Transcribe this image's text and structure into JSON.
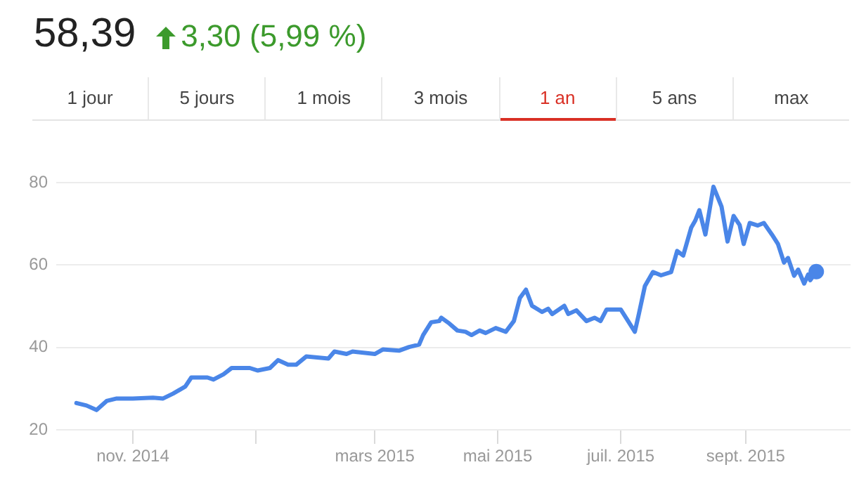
{
  "chart_data": {
    "type": "line",
    "title": "58,39",
    "subtitle": "3,30 (5,99 %)",
    "annotations": [
      "1 jour",
      "5 jours",
      "1 mois",
      "3 mois",
      "1 an",
      "5 ans",
      "max"
    ],
    "x": [
      "2014-10-04",
      "2014-10-09",
      "2014-10-14",
      "2014-10-19",
      "2014-10-24",
      "2014-11-01",
      "2014-11-11",
      "2014-11-16",
      "2014-11-21",
      "2014-11-27",
      "2014-11-30",
      "2014-12-08",
      "2014-12-11",
      "2014-12-16",
      "2014-12-20",
      "2014-12-29",
      "2015-01-02",
      "2015-01-08",
      "2015-01-12",
      "2015-01-17",
      "2015-01-21",
      "2015-01-26",
      "2015-02-06",
      "2015-02-09",
      "2015-02-15",
      "2015-02-18",
      "2015-03-01",
      "2015-03-05",
      "2015-03-13",
      "2015-03-18",
      "2015-03-23",
      "2015-03-25",
      "2015-03-29",
      "2015-04-02",
      "2015-04-03",
      "2015-04-07",
      "2015-04-11",
      "2015-04-15",
      "2015-04-18",
      "2015-04-22",
      "2015-04-25",
      "2015-04-30",
      "2015-05-05",
      "2015-05-09",
      "2015-05-12",
      "2015-05-15",
      "2015-05-18",
      "2015-05-23",
      "2015-05-26",
      "2015-05-28",
      "2015-06-03",
      "2015-06-05",
      "2015-06-09",
      "2015-06-14",
      "2015-06-18",
      "2015-06-21",
      "2015-06-24",
      "2015-07-01",
      "2015-07-04",
      "2015-07-08",
      "2015-07-10",
      "2015-07-13",
      "2015-07-17",
      "2015-07-21",
      "2015-07-26",
      "2015-07-29",
      "2015-08-01",
      "2015-08-05",
      "2015-08-07",
      "2015-08-09",
      "2015-08-12",
      "2015-08-16",
      "2015-08-20",
      "2015-08-23",
      "2015-08-26",
      "2015-08-29",
      "2015-08-31",
      "2015-09-03",
      "2015-09-07",
      "2015-09-10",
      "2015-09-14",
      "2015-09-17",
      "2015-09-20",
      "2015-09-22",
      "2015-09-25",
      "2015-09-27",
      "2015-09-30",
      "2015-10-02",
      "2015-10-03",
      "2015-10-06"
    ],
    "series": [
      {
        "color": "#4a86e8",
        "values": [
          26.5,
          25.9,
          24.8,
          27,
          27.6,
          27.6,
          27.8,
          27.6,
          28.8,
          30.5,
          32.7,
          32.7,
          32.2,
          33.5,
          35,
          35,
          34.4,
          35,
          36.9,
          35.8,
          35.8,
          37.8,
          37.3,
          39,
          38.4,
          39,
          38.4,
          39.5,
          39.2,
          40.1,
          40.7,
          43,
          46.1,
          46.4,
          47.2,
          45.8,
          44.1,
          43.8,
          43,
          44.1,
          43.5,
          44.7,
          43.8,
          46.4,
          52,
          54,
          50.1,
          48.6,
          49.4,
          48.1,
          50.1,
          48.1,
          49,
          46.4,
          47.2,
          46.4,
          49.2,
          49.2,
          46.9,
          43.8,
          48.1,
          54.9,
          58.3,
          57.5,
          58.3,
          63.4,
          62.3,
          69.1,
          70.8,
          73.3,
          67.4,
          79,
          74.2,
          65.7,
          71.9,
          69.7,
          65.1,
          70.2,
          69.6,
          70.2,
          67.4,
          65.1,
          60.6,
          61.7,
          57.4,
          58.9,
          55.5,
          57.7,
          56.3,
          58.4
        ]
      }
    ],
    "xlim": [
      "2014-09-24",
      "2015-10-23"
    ],
    "xticks": [
      {
        "value": "2014-11-01",
        "label": "nov. 2014"
      },
      {
        "value": "2015-01-01",
        "label": null
      },
      {
        "value": "2015-03-01",
        "label": "mars 2015"
      },
      {
        "value": "2015-05-01",
        "label": "mai 2015"
      },
      {
        "value": "2015-07-01",
        "label": "juil. 2015"
      },
      {
        "value": "2015-09-01",
        "label": "sept. 2015"
      }
    ],
    "ylim": [
      20,
      80
    ],
    "yticks": [
      20,
      40,
      60,
      80
    ],
    "grid": "y",
    "legend": false,
    "marker": "none",
    "line_style": "solid"
  }
}
